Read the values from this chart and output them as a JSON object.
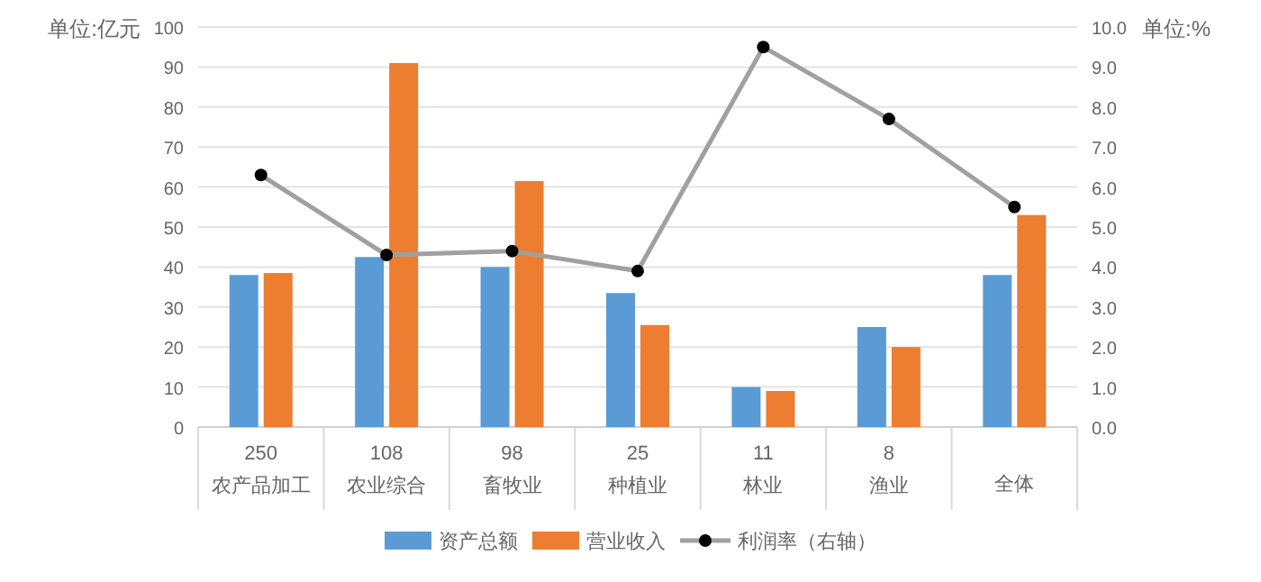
{
  "chart_data": {
    "type": "bar",
    "ylabel": "单位:亿元",
    "y2label": "单位:%",
    "categories": [
      "250\n农产品加工",
      "108\n农业综合",
      "98\n畜牧业",
      "25\n种植业",
      "11\n林业",
      "8\n渔业",
      "全体"
    ],
    "series": [
      {
        "name": "资产总额",
        "color": "#5b9bd5",
        "values": [
          38,
          42.5,
          40,
          33.5,
          10,
          25,
          38
        ]
      },
      {
        "name": "营业收入",
        "color": "#ed7d31",
        "values": [
          38.5,
          91,
          61.5,
          25.5,
          9,
          20,
          53
        ]
      },
      {
        "name": "利润率（右轴）",
        "type": "line",
        "axis": "y2",
        "color": "#a0a0a0",
        "marker": "circle",
        "values": [
          6.3,
          4.3,
          4.4,
          3.9,
          9.5,
          7.7,
          5.5
        ]
      }
    ],
    "ylim": [
      0,
      100
    ],
    "yticks": [
      0,
      10,
      20,
      30,
      40,
      50,
      60,
      70,
      80,
      90,
      100
    ],
    "y2lim": [
      0,
      10
    ],
    "y2ticks": [
      {
        "value": 0,
        "label": "0.0"
      },
      {
        "value": 1,
        "label": "1.0"
      },
      {
        "value": 2,
        "label": "2.0"
      },
      {
        "value": 3,
        "label": "3.0"
      },
      {
        "value": 4,
        "label": "4.0"
      },
      {
        "value": 5,
        "label": "5.0"
      },
      {
        "value": 6,
        "label": "6.0"
      },
      {
        "value": 7,
        "label": "7.0"
      },
      {
        "value": 8,
        "label": "8.0"
      },
      {
        "value": 9,
        "label": "9.0"
      },
      {
        "value": 10,
        "label": "10.0"
      }
    ],
    "grid": "y",
    "legend": "bottom"
  }
}
